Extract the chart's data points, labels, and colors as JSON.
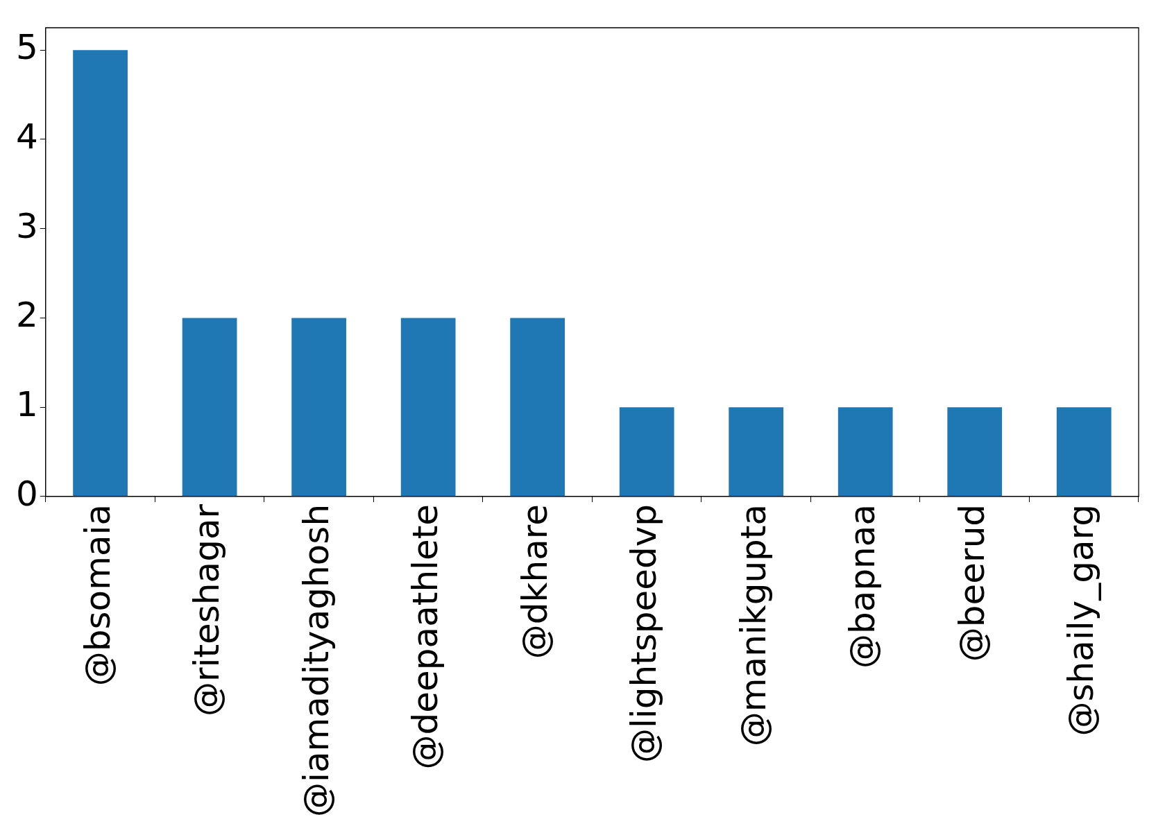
{
  "chart_data": {
    "type": "bar",
    "categories": [
      "@bsomaia",
      "@riteshagar",
      "@iamadityaghosh",
      "@deepaathlete",
      "@dkhare",
      "@lightspeedvp",
      "@manikgupta",
      "@bapnaa",
      "@beerud",
      "@shaily_garg"
    ],
    "values": [
      5,
      2,
      2,
      2,
      2,
      1,
      1,
      1,
      1,
      1
    ],
    "color": "#1f77b4",
    "ylim": [
      0,
      5.25
    ],
    "yticks": [
      0,
      1,
      2,
      3,
      4,
      5
    ],
    "grid": false,
    "legend": false
  }
}
